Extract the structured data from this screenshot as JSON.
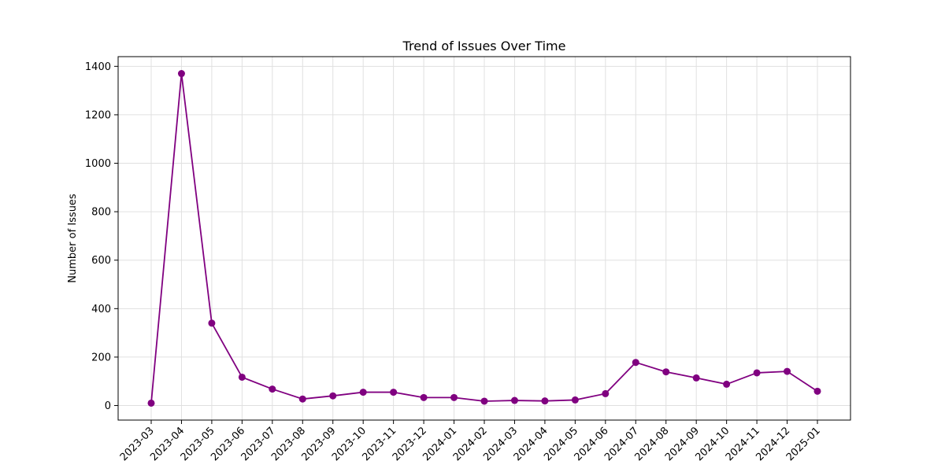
{
  "chart_data": {
    "type": "line",
    "title": "Trend of Issues Over Time",
    "xlabel": "",
    "ylabel": "Number of Issues",
    "categories": [
      "2023-03",
      "2023-04",
      "2023-05",
      "2023-06",
      "2023-07",
      "2023-08",
      "2023-09",
      "2023-10",
      "2023-11",
      "2023-12",
      "2024-01",
      "2024-02",
      "2024-03",
      "2024-04",
      "2024-05",
      "2024-06",
      "2024-07",
      "2024-08",
      "2024-09",
      "2024-10",
      "2024-11",
      "2024-12",
      "2025-01"
    ],
    "series": [
      {
        "values": [
          10,
          1370,
          340,
          117,
          68,
          27,
          40,
          55,
          55,
          33,
          33,
          18,
          21,
          19,
          23,
          49,
          178,
          139,
          114,
          88,
          135,
          141,
          59
        ]
      }
    ],
    "ylim": [
      -60,
      1440
    ],
    "yticks": [
      0,
      200,
      400,
      600,
      800,
      1000,
      1200,
      1400
    ],
    "grid": true,
    "colors": {
      "line": "#800080",
      "marker": "#800080",
      "grid": "#e0e0e0",
      "axis": "#000000"
    }
  }
}
